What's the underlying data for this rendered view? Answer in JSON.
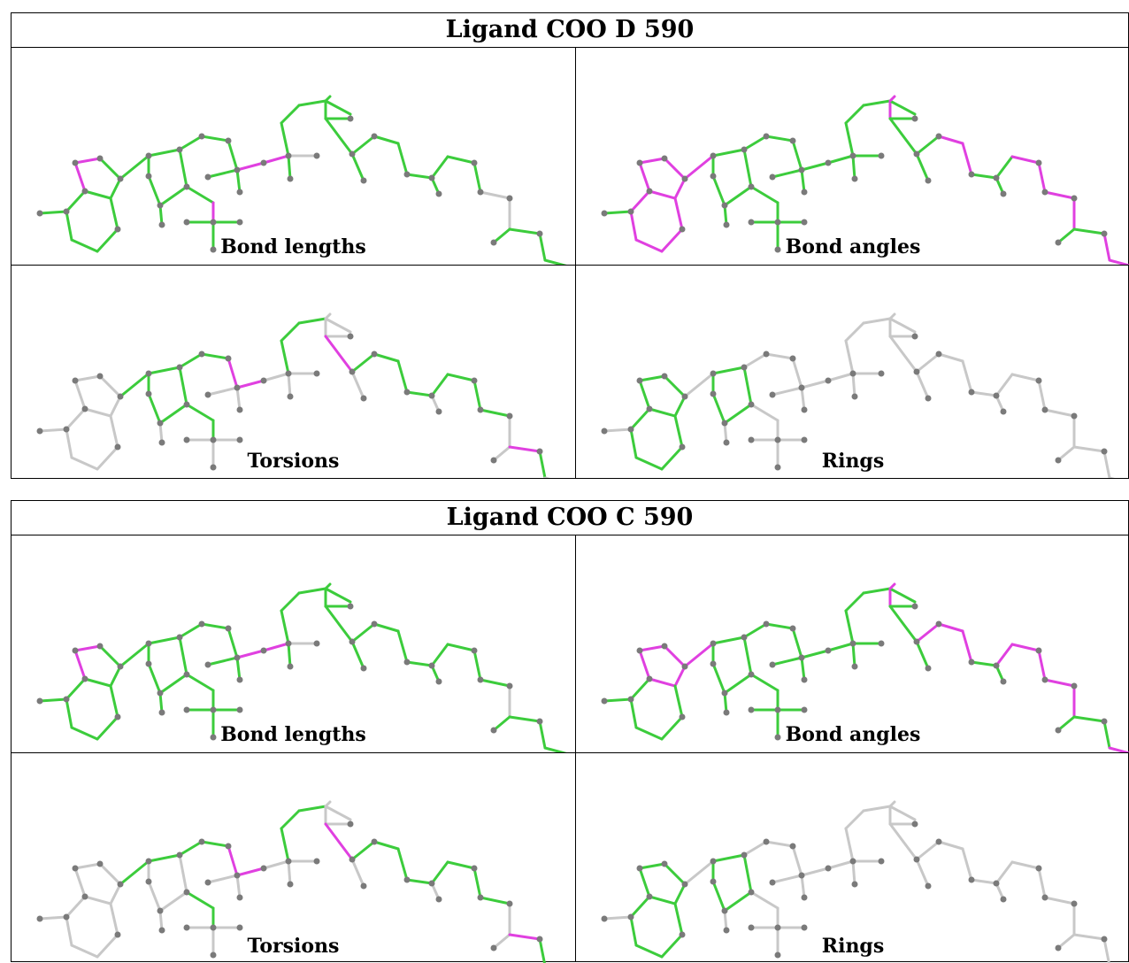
{
  "blocks": [
    {
      "title": "Ligand COO D 590",
      "panels": {
        "bond_lengths": "Bond lengths",
        "bond_angles": "Bond angles",
        "torsions": "Torsions",
        "rings": "Rings"
      }
    },
    {
      "title": "Ligand COO C 590",
      "panels": {
        "bond_lengths": "Bond lengths",
        "bond_angles": "Bond angles",
        "torsions": "Torsions",
        "rings": "Rings"
      }
    }
  ],
  "colors": {
    "ok": "#3ccc3c",
    "outlier": "#e040e0",
    "neutral": "#c8c8c8",
    "atom": "#7a7a7a"
  }
}
